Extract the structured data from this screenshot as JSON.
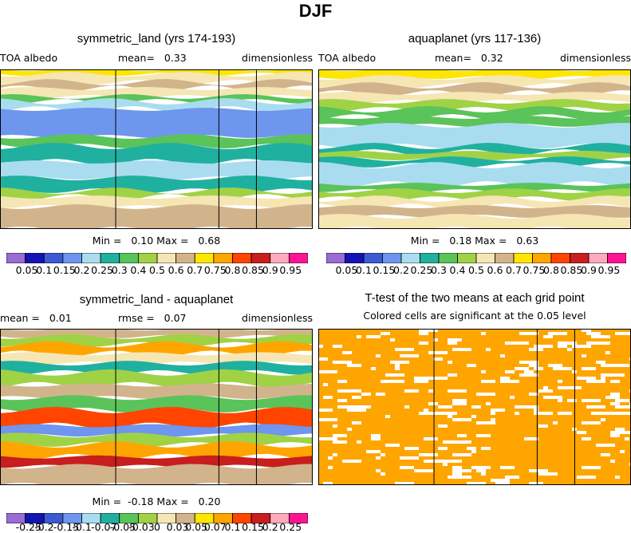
{
  "season": "DJF",
  "panels": [
    {
      "id": "symmetric_land",
      "title": "symmetric_land (yrs 174-193)",
      "meta_left": "TOA albedo",
      "meta_mid": "mean=   0.33",
      "meta_right": "dimensionless",
      "minmax": "Min =   0.10 Max =   0.68"
    },
    {
      "id": "aquaplanet",
      "title": "aquaplanet (yrs 117-136)",
      "meta_left": "TOA albedo",
      "meta_mid": "mean=   0.32",
      "meta_right": "dimensionless",
      "minmax": "Min =   0.18 Max =   0.63"
    },
    {
      "id": "difference",
      "title": "symmetric_land - aquaplanet",
      "meta_left": "mean =   0.01",
      "meta_mid": "rmse =   0.07",
      "meta_right": "dimensionless",
      "minmax": "Min =  -0.18 Max =   0.20"
    },
    {
      "id": "ttest",
      "title": "T-test of the two means at each grid point",
      "subtitle": "Colored cells are significant at the 0.05 level"
    }
  ],
  "colorbars": {
    "field": {
      "colors": [
        "#9b6bd6",
        "#1414b4",
        "#3c5ad2",
        "#6e96ee",
        "#aadcf0",
        "#20b0a0",
        "#5ac35a",
        "#a0d246",
        "#f5e6b4",
        "#d2b48c",
        "#ffe600",
        "#ffa500",
        "#ff4500",
        "#c81e1e",
        "#ffaabe",
        "#ff1493"
      ],
      "labels": [
        "0.05",
        "0.1",
        "0.15",
        "0.2",
        "0.25",
        "0.3",
        "0.4",
        "0.5",
        "0.6",
        "0.7",
        "0.75",
        "0.8",
        "0.85",
        "0.9",
        "0.95"
      ]
    },
    "diff": {
      "colors": [
        "#9b6bd6",
        "#1414b4",
        "#3c5ad2",
        "#6e96ee",
        "#aadcf0",
        "#20b0a0",
        "#5ac35a",
        "#a0d246",
        "#f5e6b4",
        "#d2b48c",
        "#ffe600",
        "#ffa500",
        "#ff4500",
        "#c81e1e",
        "#ffaabe",
        "#ff1493"
      ],
      "labels": [
        "-0.25",
        "-0.2",
        "-0.15",
        "-0.1",
        "-0.07",
        "-0.05",
        "-0.03",
        "0",
        "0.03",
        "0.05",
        "0.07",
        "0.1",
        "0.15",
        "0.2",
        "0.25"
      ]
    }
  },
  "colors": {
    "ttest_fill": "#ffa500",
    "frame": "#000000"
  },
  "chart_data": [
    {
      "type": "heatmap",
      "title": "symmetric_land (yrs 174-193)",
      "variable": "TOA albedo",
      "units": "dimensionless",
      "mean": 0.33,
      "min": 0.1,
      "max": 0.68,
      "bands": [
        {
          "lat": [
            0.0,
            0.03
          ],
          "value": 0.75
        },
        {
          "lat": [
            0.03,
            0.08
          ],
          "value": 0.55
        },
        {
          "lat": [
            0.08,
            0.12
          ],
          "value": 0.65
        },
        {
          "lat": [
            0.12,
            0.17
          ],
          "value": 0.55
        },
        {
          "lat": [
            0.17,
            0.2
          ],
          "value": 0.35
        },
        {
          "lat": [
            0.2,
            0.25
          ],
          "value": 0.25
        },
        {
          "lat": [
            0.25,
            0.42
          ],
          "value": 0.2
        },
        {
          "lat": [
            0.42,
            0.48
          ],
          "value": 0.35
        },
        {
          "lat": [
            0.48,
            0.58
          ],
          "value": 0.3
        },
        {
          "lat": [
            0.58,
            0.68
          ],
          "value": 0.22
        },
        {
          "lat": [
            0.68,
            0.76
          ],
          "value": 0.3
        },
        {
          "lat": [
            0.76,
            0.8
          ],
          "value": 0.5
        },
        {
          "lat": [
            0.8,
            0.86
          ],
          "value": 0.55
        },
        {
          "lat": [
            0.86,
            1.0
          ],
          "value": 0.65
        }
      ],
      "land_columns": [
        [
          0.37,
          0.7
        ],
        [
          0.82,
          1.0
        ]
      ]
    },
    {
      "type": "heatmap",
      "title": "aquaplanet (yrs 117-136)",
      "variable": "TOA albedo",
      "units": "dimensionless",
      "mean": 0.32,
      "min": 0.18,
      "max": 0.63,
      "bands": [
        {
          "lat": [
            0.0,
            0.05
          ],
          "value": 0.75
        },
        {
          "lat": [
            0.05,
            0.1
          ],
          "value": 0.55
        },
        {
          "lat": [
            0.1,
            0.15
          ],
          "value": 0.65
        },
        {
          "lat": [
            0.15,
            0.2
          ],
          "value": 0.55
        },
        {
          "lat": [
            0.2,
            0.25
          ],
          "value": 0.45
        },
        {
          "lat": [
            0.25,
            0.3
          ],
          "value": 0.4
        },
        {
          "lat": [
            0.3,
            0.35
          ],
          "value": 0.35
        },
        {
          "lat": [
            0.35,
            0.48
          ],
          "value": 0.22
        },
        {
          "lat": [
            0.48,
            0.52
          ],
          "value": 0.3
        },
        {
          "lat": [
            0.52,
            0.56
          ],
          "value": 0.45
        },
        {
          "lat": [
            0.56,
            0.6
          ],
          "value": 0.3
        },
        {
          "lat": [
            0.6,
            0.72
          ],
          "value": 0.22
        },
        {
          "lat": [
            0.72,
            0.76
          ],
          "value": 0.35
        },
        {
          "lat": [
            0.76,
            0.81
          ],
          "value": 0.45
        },
        {
          "lat": [
            0.81,
            0.86
          ],
          "value": 0.55
        },
        {
          "lat": [
            0.86,
            0.92
          ],
          "value": 0.65
        },
        {
          "lat": [
            0.92,
            1.0
          ],
          "value": 0.6
        }
      ]
    },
    {
      "type": "heatmap",
      "title": "symmetric_land - aquaplanet",
      "units": "dimensionless",
      "mean": 0.01,
      "rmse": 0.07,
      "min": -0.18,
      "max": 0.2,
      "bands": [
        {
          "lat": [
            0.0,
            0.05
          ],
          "value": 0.04
        },
        {
          "lat": [
            0.05,
            0.1
          ],
          "value": -0.02
        },
        {
          "lat": [
            0.1,
            0.16
          ],
          "value": 0.1
        },
        {
          "lat": [
            0.16,
            0.22
          ],
          "value": 0.02
        },
        {
          "lat": [
            0.22,
            0.28
          ],
          "value": -0.06
        },
        {
          "lat": [
            0.28,
            0.36
          ],
          "value": -0.02
        },
        {
          "lat": [
            0.36,
            0.44
          ],
          "value": 0.04
        },
        {
          "lat": [
            0.44,
            0.52
          ],
          "value": -0.04
        },
        {
          "lat": [
            0.52,
            0.62
          ],
          "value": 0.12
        },
        {
          "lat": [
            0.62,
            0.68
          ],
          "value": -0.1
        },
        {
          "lat": [
            0.68,
            0.74
          ],
          "value": -0.02
        },
        {
          "lat": [
            0.74,
            0.82
          ],
          "value": 0.1
        },
        {
          "lat": [
            0.82,
            0.88
          ],
          "value": 0.2
        },
        {
          "lat": [
            0.88,
            1.0
          ],
          "value": 0.04
        }
      ]
    },
    {
      "type": "heatmap",
      "title": "T-test of the two means at each grid point",
      "subtitle": "Colored cells are significant at the 0.05 level",
      "significant_fraction": 0.93
    }
  ]
}
